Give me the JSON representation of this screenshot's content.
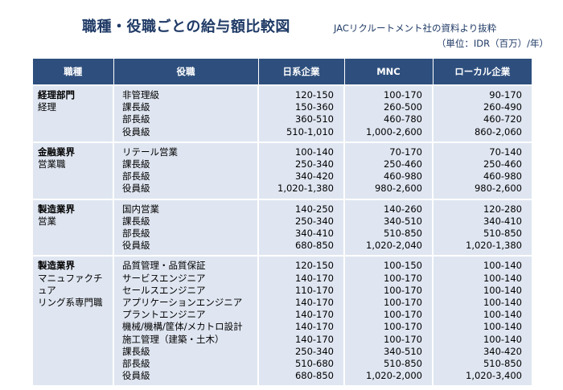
{
  "header": {
    "title": "職種・役職ごとの給与額比較図",
    "source": "JACリクルートメント社の資料より抜粋",
    "unit": "（単位：IDR（百万）/年）"
  },
  "columns": [
    "職種",
    "役職",
    "日系企業",
    "MNC",
    "ローカル企業"
  ],
  "groups": [
    {
      "category": "経理部門",
      "sub": [
        "経理"
      ],
      "rows": [
        {
          "position": "非管理級",
          "japanese": "120-150",
          "mnc": "100-170",
          "local": "90-170"
        },
        {
          "position": "課長級",
          "japanese": "150-360",
          "mnc": "260-500",
          "local": "260-490"
        },
        {
          "position": "部長級",
          "japanese": "360-510",
          "mnc": "460-780",
          "local": "460-720"
        },
        {
          "position": "役員級",
          "japanese": "510-1,010",
          "mnc": "1,000-2,600",
          "local": "860-2,060"
        }
      ]
    },
    {
      "category": "金融業界",
      "sub": [
        "営業職"
      ],
      "rows": [
        {
          "position": "リテール営業",
          "japanese": "100-140",
          "mnc": "70-170",
          "local": "70-140"
        },
        {
          "position": "課長級",
          "japanese": "250-340",
          "mnc": "250-460",
          "local": "250-460"
        },
        {
          "position": "部長級",
          "japanese": "340-420",
          "mnc": "460-980",
          "local": "460-980"
        },
        {
          "position": "役員級",
          "japanese": "1,020-1,380",
          "mnc": "980-2,600",
          "local": "980-2,600"
        }
      ]
    },
    {
      "category": "製造業界",
      "sub": [
        "営業"
      ],
      "rows": [
        {
          "position": "国内営業",
          "japanese": "140-250",
          "mnc": "140-260",
          "local": "120-280"
        },
        {
          "position": "課長級",
          "japanese": "250-340",
          "mnc": "340-510",
          "local": "340-410"
        },
        {
          "position": "部長級",
          "japanese": "340-410",
          "mnc": "510-850",
          "local": "510-850"
        },
        {
          "position": "役員級",
          "japanese": "680-850",
          "mnc": "1,020-2,040",
          "local": "1,020-1,380"
        }
      ]
    },
    {
      "category": "製造業界",
      "sub": [
        "マニュファクチュア",
        "リング系専門職"
      ],
      "rows": [
        {
          "position": "品質管理・品質保証",
          "japanese": "120-150",
          "mnc": "100-150",
          "local": "100-140"
        },
        {
          "position": "サービスエンジニア",
          "japanese": "140-170",
          "mnc": "100-170",
          "local": "100-140"
        },
        {
          "position": "セールスエンジニア",
          "japanese": "110-170",
          "mnc": "100-170",
          "local": "100-140"
        },
        {
          "position": "アプリケーションエンジニア",
          "japanese": "140-170",
          "mnc": "100-170",
          "local": "100-140"
        },
        {
          "position": "プラントエンジニア",
          "japanese": "140-170",
          "mnc": "100-170",
          "local": "100-140"
        },
        {
          "position": "機械/機構/筐体/メカトロ設計",
          "japanese": "140-170",
          "mnc": "100-170",
          "local": "100-140"
        },
        {
          "position": "施工管理（建築・土木）",
          "japanese": "140-170",
          "mnc": "100-170",
          "local": "100-140"
        },
        {
          "position": "課長級",
          "japanese": "250-340",
          "mnc": "340-510",
          "local": "340-420"
        },
        {
          "position": "部長級",
          "japanese": "510-680",
          "mnc": "510-850",
          "local": "510-850"
        },
        {
          "position": "役員級",
          "japanese": "680-850",
          "mnc": "1,020-2,000",
          "local": "1,020-3,400"
        }
      ]
    }
  ]
}
